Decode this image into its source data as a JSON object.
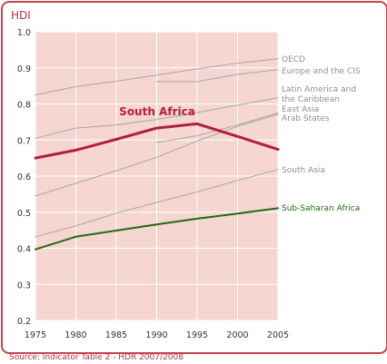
{
  "colors": {
    "frame": "#c9424f",
    "plot_bg": "#f5d6d1",
    "grid": "#ffffff",
    "other_series": "#a8a8a8",
    "south_africa": "#b41e3c",
    "sub_saharan": "#1f6b12",
    "title_red": "#b8323f",
    "label_gray": "#8f8f8f"
  },
  "chart_data": {
    "type": "line",
    "title": "",
    "ylabel": "HDI",
    "xlabel": "",
    "x": [
      1975,
      1980,
      1985,
      1990,
      1995,
      2000,
      2005
    ],
    "xlim": [
      1975,
      2005
    ],
    "ylim": [
      0.2,
      1.0
    ],
    "y_ticks": [
      "0.2",
      "0.3",
      "0.4",
      "0.5",
      "0.6",
      "0.7",
      "0.8",
      "0.9",
      "1.0"
    ],
    "x_ticks": [
      "1975",
      "1980",
      "1985",
      "1990",
      "1995",
      "2000",
      "2005"
    ],
    "grid": true,
    "series": [
      {
        "name": "OECD",
        "x": [
          1975,
          1980,
          1985,
          1990,
          1995,
          2000,
          2005
        ],
        "values": [
          0.825,
          0.848,
          0.863,
          0.88,
          0.897,
          0.913,
          0.925
        ]
      },
      {
        "name": "Europe and the CIS",
        "x": [
          1990,
          1995,
          2000,
          2005
        ],
        "values": [
          0.862,
          0.862,
          0.882,
          0.895
        ]
      },
      {
        "name": "Latin America and the Caribbean",
        "x": [
          1975,
          1980,
          1985,
          1990,
          1995,
          2000,
          2005
        ],
        "values": [
          0.705,
          0.733,
          0.742,
          0.757,
          0.776,
          0.797,
          0.817
        ]
      },
      {
        "name": "East Asia",
        "x": [
          1975,
          1980,
          1985,
          1990,
          1995,
          2000,
          2005
        ],
        "values": [
          0.545,
          0.58,
          0.615,
          0.652,
          0.697,
          0.738,
          0.771
        ]
      },
      {
        "name": "Arab States",
        "x": [
          1990,
          1995,
          2000,
          2005
        ],
        "values": [
          0.693,
          0.712,
          0.742,
          0.775
        ]
      },
      {
        "name": "South Asia",
        "x": [
          1975,
          1980,
          1985,
          1990,
          1995,
          2000,
          2005
        ],
        "values": [
          0.432,
          0.462,
          0.497,
          0.527,
          0.556,
          0.588,
          0.618
        ]
      },
      {
        "name": "South Africa",
        "x": [
          1975,
          1980,
          1985,
          1990,
          1995,
          2000,
          2005
        ],
        "values": [
          0.65,
          0.672,
          0.702,
          0.733,
          0.745,
          0.71,
          0.674
        ],
        "emphasis": "primary"
      },
      {
        "name": "Sub-Saharan Africa",
        "x": [
          1975,
          1980,
          1985,
          1990,
          1995,
          2000,
          2005
        ],
        "values": [
          0.397,
          0.432,
          0.449,
          0.466,
          0.482,
          0.496,
          0.511
        ],
        "emphasis": "secondary"
      }
    ],
    "annotations": [
      {
        "text": "OECD",
        "series": "OECD"
      },
      {
        "text": "Europe and the CIS",
        "series": "Europe and the CIS"
      },
      {
        "text": "Latin America and",
        "series": "Latin America and the Caribbean"
      },
      {
        "text": "the Caribbean",
        "series": "Latin America and the Caribbean"
      },
      {
        "text": "East Asia",
        "series": "East Asia"
      },
      {
        "text": "Arab States",
        "series": "Arab States"
      },
      {
        "text": "South Asia",
        "series": "South Asia"
      },
      {
        "text": "Sub-Saharan Africa",
        "series": "Sub-Saharan Africa"
      },
      {
        "text": "South Africa",
        "series": "South Africa"
      }
    ]
  },
  "footer": {
    "source": "Source: Indicator Table 2 - HDR 2007/2008"
  }
}
